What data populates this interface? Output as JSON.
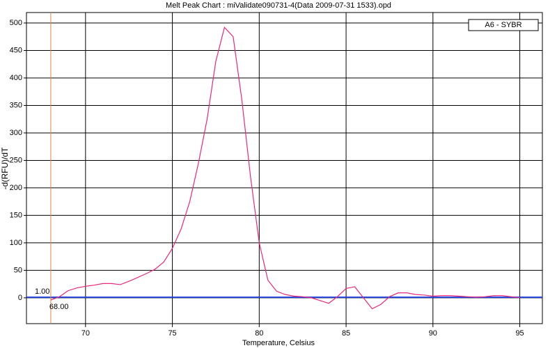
{
  "chart_data": {
    "type": "line",
    "title": "Melt Peak Chart : miValidate090731-4(Data 2009-07-31 1533).opd",
    "x_label": "Temperature, Celsius",
    "y_label": "-d(RFU)/dT",
    "x": [
      68,
      68.5,
      69,
      69.5,
      70,
      70.5,
      71,
      71.5,
      72,
      72.5,
      73,
      73.5,
      74,
      74.5,
      75,
      75.5,
      76,
      76.5,
      77,
      77.5,
      78,
      78.5,
      79,
      79.5,
      80,
      80.5,
      81,
      81.5,
      82,
      82.5,
      83,
      83.5,
      84,
      84.5,
      85,
      85.5,
      86,
      86.5,
      87,
      87.5,
      88,
      88.5,
      89,
      89.5,
      90,
      90.5,
      91,
      91.5,
      92,
      92.5,
      93,
      93.5,
      94,
      94.5,
      95
    ],
    "series": [
      {
        "name": "A6 - SYBR",
        "color": "#e8287c",
        "values": [
          -4,
          2,
          13,
          18,
          21,
          23,
          26,
          26,
          24,
          30,
          37,
          44,
          52,
          65,
          90,
          125,
          175,
          245,
          325,
          430,
          492,
          475,
          360,
          220,
          100,
          32,
          12,
          6,
          3,
          2,
          0,
          -5,
          -10,
          2,
          17,
          20,
          0,
          -20,
          -12,
          2,
          9,
          9,
          6,
          5,
          3,
          4,
          4,
          3,
          2,
          1,
          2,
          4,
          4,
          2,
          0
        ]
      }
    ],
    "xlim": [
      66.6,
      96.3
    ],
    "ylim": [
      -47,
      519
    ],
    "xticks": [
      70,
      75,
      80,
      85,
      90,
      95
    ],
    "yticks": [
      0,
      50,
      100,
      150,
      200,
      250,
      300,
      350,
      400,
      450,
      500
    ],
    "grid": true,
    "legend": "top-right",
    "threshold": {
      "value": 1,
      "label": "1.00",
      "color": "#1f3fd6"
    },
    "marker": {
      "value": 68,
      "label": "68.00",
      "color": "#e0844a"
    }
  }
}
